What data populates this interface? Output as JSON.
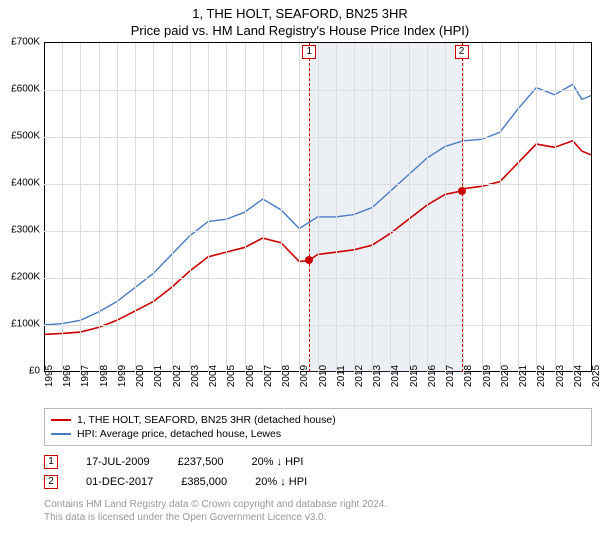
{
  "title": "1, THE HOLT, SEAFORD, BN25 3HR",
  "subtitle": "Price paid vs. HM Land Registry's House Price Index (HPI)",
  "chart": {
    "type": "line",
    "background_color": "#ffffff",
    "grid_color": "#dddddd",
    "axis_color": "#000000",
    "title_fontsize": 13,
    "label_fontsize": 10,
    "y": {
      "min": 0,
      "max": 700000,
      "step": 100000,
      "ticks": [
        "£0",
        "£100K",
        "£200K",
        "£300K",
        "£400K",
        "£500K",
        "£600K",
        "£700K"
      ]
    },
    "x": {
      "min": 1995,
      "max": 2025,
      "ticks": [
        "1995",
        "1996",
        "1997",
        "1998",
        "1999",
        "2000",
        "2001",
        "2002",
        "2003",
        "2004",
        "2005",
        "2006",
        "2007",
        "2008",
        "2009",
        "2010",
        "2011",
        "2012",
        "2013",
        "2014",
        "2015",
        "2016",
        "2017",
        "2018",
        "2019",
        "2020",
        "2021",
        "2022",
        "2023",
        "2024",
        "2025"
      ]
    },
    "shaded_region": {
      "x_start": 2009.55,
      "x_end": 2017.9
    },
    "series": [
      {
        "key": "property",
        "label": "1, THE HOLT, SEAFORD, BN25 3HR (detached house)",
        "color": "#cc0000",
        "line_width": 1.6,
        "points": [
          [
            1995,
            80000
          ],
          [
            1996,
            82000
          ],
          [
            1997,
            85000
          ],
          [
            1998,
            95000
          ],
          [
            1999,
            110000
          ],
          [
            2000,
            130000
          ],
          [
            2001,
            150000
          ],
          [
            2002,
            180000
          ],
          [
            2003,
            215000
          ],
          [
            2004,
            245000
          ],
          [
            2005,
            255000
          ],
          [
            2006,
            265000
          ],
          [
            2007,
            285000
          ],
          [
            2008,
            275000
          ],
          [
            2009,
            235000
          ],
          [
            2009.55,
            237500
          ],
          [
            2010,
            250000
          ],
          [
            2011,
            255000
          ],
          [
            2012,
            260000
          ],
          [
            2013,
            270000
          ],
          [
            2014,
            295000
          ],
          [
            2015,
            325000
          ],
          [
            2016,
            355000
          ],
          [
            2017,
            378000
          ],
          [
            2017.9,
            385000
          ],
          [
            2018,
            390000
          ],
          [
            2019,
            395000
          ],
          [
            2020,
            405000
          ],
          [
            2021,
            445000
          ],
          [
            2022,
            485000
          ],
          [
            2023,
            478000
          ],
          [
            2024,
            492000
          ],
          [
            2024.5,
            470000
          ],
          [
            2025,
            462000
          ]
        ]
      },
      {
        "key": "hpi",
        "label": "HPI: Average price, detached house, Lewes",
        "color": "#4a7cc4",
        "line_width": 1.4,
        "points": [
          [
            1995,
            100000
          ],
          [
            1996,
            103000
          ],
          [
            1997,
            110000
          ],
          [
            1998,
            128000
          ],
          [
            1999,
            150000
          ],
          [
            2000,
            180000
          ],
          [
            2001,
            210000
          ],
          [
            2002,
            250000
          ],
          [
            2003,
            290000
          ],
          [
            2004,
            320000
          ],
          [
            2005,
            325000
          ],
          [
            2006,
            340000
          ],
          [
            2007,
            368000
          ],
          [
            2008,
            345000
          ],
          [
            2009,
            305000
          ],
          [
            2010,
            330000
          ],
          [
            2011,
            330000
          ],
          [
            2012,
            335000
          ],
          [
            2013,
            350000
          ],
          [
            2014,
            385000
          ],
          [
            2015,
            420000
          ],
          [
            2016,
            455000
          ],
          [
            2017,
            480000
          ],
          [
            2018,
            492000
          ],
          [
            2019,
            495000
          ],
          [
            2020,
            510000
          ],
          [
            2021,
            560000
          ],
          [
            2022,
            605000
          ],
          [
            2023,
            590000
          ],
          [
            2024,
            612000
          ],
          [
            2024.5,
            580000
          ],
          [
            2025,
            588000
          ]
        ]
      }
    ],
    "markers": [
      {
        "n": "1",
        "x": 2009.55,
        "y": 237500,
        "date": "17-JUL-2009",
        "price": "£237,500",
        "delta": "20% ↓ HPI",
        "dot_color": "#cc0000",
        "line_color": "#cc0000"
      },
      {
        "n": "2",
        "x": 2017.9,
        "y": 385000,
        "date": "01-DEC-2017",
        "price": "£385,000",
        "delta": "20% ↓ HPI",
        "dot_color": "#cc0000",
        "line_color": "#cc0000"
      }
    ]
  },
  "legend_title": "",
  "footer1": "Contains HM Land Registry data © Crown copyright and database right 2024.",
  "footer2": "This data is licensed under the Open Government Licence v3.0."
}
